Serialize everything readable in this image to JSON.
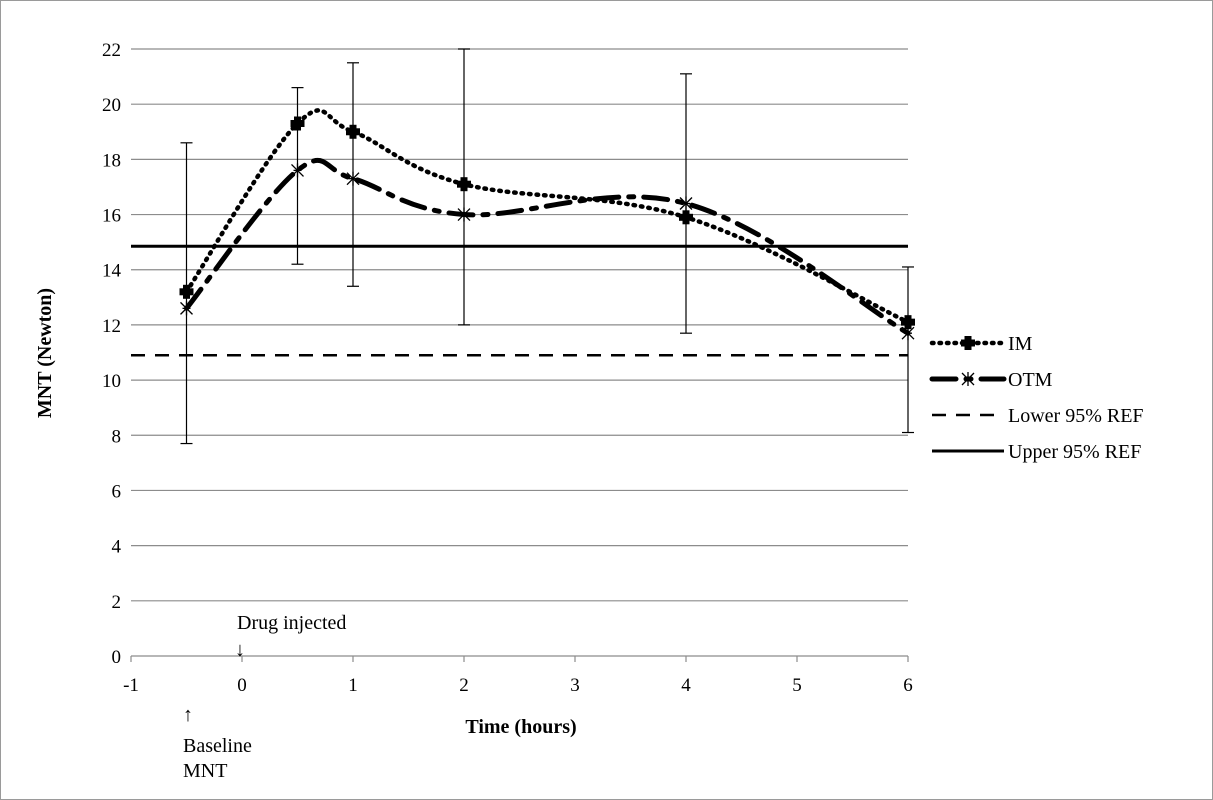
{
  "chart_data": {
    "type": "line",
    "title": "",
    "xlabel": "Time (hours)",
    "ylabel": "MNT (Newton)",
    "xlim": [
      -1,
      6
    ],
    "ylim": [
      0,
      22
    ],
    "x_ticks": [
      -1,
      0,
      1,
      2,
      3,
      4,
      5,
      6
    ],
    "y_ticks": [
      0,
      2,
      4,
      6,
      8,
      10,
      12,
      14,
      16,
      18,
      20,
      22
    ],
    "grid": "horizontal",
    "legend": "right",
    "series": [
      {
        "name": "IM",
        "style": "dotted-marker-cross",
        "color": "#000000",
        "x": [
          -0.5,
          0.5,
          1,
          2,
          4,
          6
        ],
        "y": [
          13.2,
          19.3,
          19.0,
          17.1,
          15.9,
          12.1
        ],
        "error_low": [
          7.7,
          14.2,
          13.4,
          12.0,
          11.7,
          8.1
        ],
        "error_high": [
          18.6,
          20.6,
          21.5,
          22.0,
          21.1,
          14.1
        ]
      },
      {
        "name": "OTM",
        "style": "long-dash-marker-star",
        "color": "#000000",
        "x": [
          -0.5,
          0.5,
          1,
          2,
          4,
          6
        ],
        "y": [
          12.6,
          17.6,
          17.3,
          16.0,
          16.4,
          11.7
        ]
      },
      {
        "name": "Lower 95% REF",
        "style": "dashed",
        "color": "#000000",
        "x": [
          -1,
          6
        ],
        "y": [
          10.9,
          10.9
        ]
      },
      {
        "name": "Upper 95% REF",
        "style": "solid",
        "color": "#000000",
        "x": [
          -1,
          6
        ],
        "y": [
          14.85,
          14.85
        ]
      }
    ],
    "annotations": [
      {
        "id": "drug",
        "text": "Drug injected",
        "arrow": "↓",
        "x": 0,
        "y": 2
      },
      {
        "id": "baseline",
        "text": "Baseline",
        "text2": "MNT",
        "arrow": "↑",
        "x": -0.5
      }
    ]
  }
}
